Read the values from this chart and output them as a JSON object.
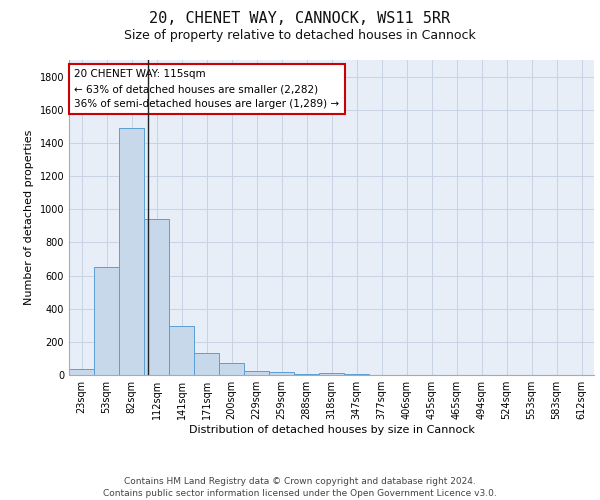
{
  "title1": "20, CHENET WAY, CANNOCK, WS11 5RR",
  "title2": "Size of property relative to detached houses in Cannock",
  "xlabel": "Distribution of detached houses by size in Cannock",
  "ylabel": "Number of detached properties",
  "categories": [
    "23sqm",
    "53sqm",
    "82sqm",
    "112sqm",
    "141sqm",
    "171sqm",
    "200sqm",
    "229sqm",
    "259sqm",
    "288sqm",
    "318sqm",
    "347sqm",
    "377sqm",
    "406sqm",
    "435sqm",
    "465sqm",
    "494sqm",
    "524sqm",
    "553sqm",
    "583sqm",
    "612sqm"
  ],
  "values": [
    35,
    650,
    1490,
    940,
    295,
    130,
    70,
    25,
    20,
    5,
    15,
    5,
    3,
    3,
    3,
    3,
    3,
    3,
    3,
    3,
    3
  ],
  "bar_color": "#c8d8eb",
  "bar_edge_color": "#5a9fd4",
  "vline_x": 2.67,
  "vline_color": "#222222",
  "annotation_text": "20 CHENET WAY: 115sqm\n← 63% of detached houses are smaller (2,282)\n36% of semi-detached houses are larger (1,289) →",
  "annotation_box_color": "#ffffff",
  "annotation_box_edge_color": "#cc0000",
  "ylim": [
    0,
    1900
  ],
  "yticks": [
    0,
    200,
    400,
    600,
    800,
    1000,
    1200,
    1400,
    1600,
    1800
  ],
  "grid_color": "#c8d4e4",
  "background_color": "#e8eef8",
  "footer_text": "Contains HM Land Registry data © Crown copyright and database right 2024.\nContains public sector information licensed under the Open Government Licence v3.0.",
  "title1_fontsize": 11,
  "title2_fontsize": 9,
  "xlabel_fontsize": 8,
  "ylabel_fontsize": 8,
  "tick_fontsize": 7,
  "annotation_fontsize": 7.5,
  "footer_fontsize": 6.5
}
